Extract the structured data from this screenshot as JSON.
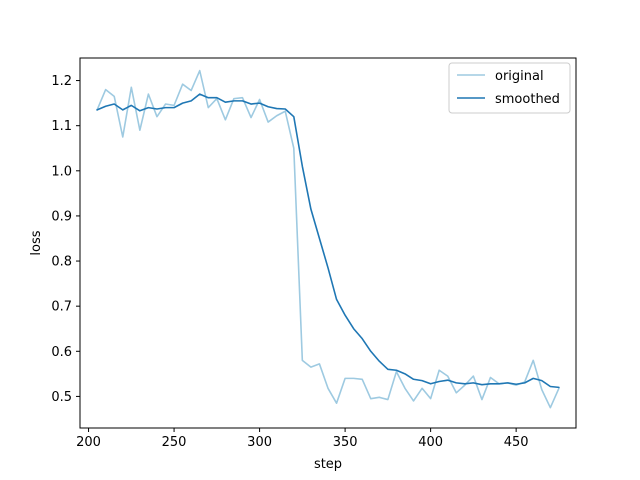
{
  "chart_data": {
    "type": "line",
    "xlabel": "step",
    "ylabel": "loss",
    "xlim": [
      195,
      485
    ],
    "ylim": [
      0.43,
      1.25
    ],
    "xticks": [
      200,
      250,
      300,
      350,
      400,
      450
    ],
    "yticks": [
      0.5,
      0.6,
      0.7,
      0.8,
      0.9,
      1.0,
      1.1,
      1.2
    ],
    "xtick_labels": [
      "200",
      "250",
      "300",
      "350",
      "400",
      "450"
    ],
    "ytick_labels": [
      "0.5",
      "0.6",
      "0.7",
      "0.8",
      "0.9",
      "1.0",
      "1.1",
      "1.2"
    ],
    "grid": false,
    "legend_position": "top-right",
    "x": [
      205,
      210,
      215,
      220,
      225,
      230,
      235,
      240,
      245,
      250,
      255,
      260,
      265,
      270,
      275,
      280,
      285,
      290,
      295,
      300,
      305,
      310,
      315,
      320,
      325,
      330,
      335,
      340,
      345,
      350,
      355,
      360,
      365,
      370,
      375,
      380,
      385,
      390,
      395,
      400,
      405,
      410,
      415,
      420,
      425,
      430,
      435,
      440,
      445,
      450,
      455,
      460,
      465,
      470,
      475
    ],
    "series": [
      {
        "name": "original",
        "color": "#9ecae1",
        "values": [
          1.135,
          1.18,
          1.165,
          1.075,
          1.185,
          1.09,
          1.17,
          1.12,
          1.148,
          1.145,
          1.192,
          1.178,
          1.222,
          1.14,
          1.16,
          1.113,
          1.16,
          1.162,
          1.118,
          1.158,
          1.108,
          1.122,
          1.132,
          1.05,
          0.58,
          0.565,
          0.572,
          0.518,
          0.485,
          0.54,
          0.54,
          0.538,
          0.495,
          0.498,
          0.493,
          0.555,
          0.518,
          0.49,
          0.518,
          0.495,
          0.558,
          0.545,
          0.508,
          0.525,
          0.545,
          0.493,
          0.542,
          0.528,
          0.53,
          0.525,
          0.532,
          0.58,
          0.515,
          0.475,
          0.518
        ]
      },
      {
        "name": "smoothed",
        "color": "#1f77b4",
        "values": [
          1.135,
          1.143,
          1.148,
          1.135,
          1.145,
          1.133,
          1.14,
          1.137,
          1.14,
          1.14,
          1.15,
          1.155,
          1.17,
          1.162,
          1.162,
          1.152,
          1.155,
          1.155,
          1.148,
          1.15,
          1.142,
          1.138,
          1.137,
          1.12,
          1.01,
          0.915,
          0.85,
          0.785,
          0.715,
          0.68,
          0.65,
          0.628,
          0.6,
          0.578,
          0.56,
          0.558,
          0.55,
          0.538,
          0.535,
          0.528,
          0.533,
          0.536,
          0.53,
          0.528,
          0.53,
          0.526,
          0.528,
          0.528,
          0.53,
          0.527,
          0.53,
          0.54,
          0.535,
          0.522,
          0.52
        ]
      }
    ]
  }
}
